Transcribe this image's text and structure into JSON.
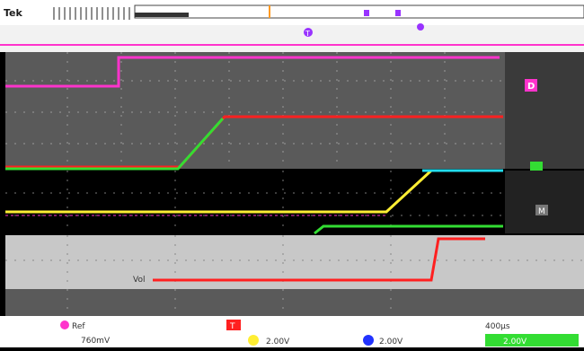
{
  "top_bar": {
    "title": "Tek",
    "trigger_label": "T"
  },
  "markers": {
    "trigger_marker_1": "T",
    "trigger_marker_2": "T"
  },
  "channel_labels": {
    "d_label": "D",
    "ch2": "M",
    "ch3": "M",
    "ch_ref": "Vol"
  },
  "readouts": {
    "ch1_label": "Ref",
    "ch1_volts": "760mV",
    "ch3_volts": "2.00V",
    "ch4_volts": "2.00V",
    "timebase": "400µs",
    "trigger_level": "2.00V"
  },
  "colors": {
    "magenta": "#ff33cc",
    "red": "#ff2020",
    "green": "#33dd33",
    "yellow": "#ffee33",
    "cyan": "#22ddee",
    "orange": "#ff9a22",
    "violet": "#9933ff",
    "blue": "#2233ff",
    "gray": "#5a5a5a",
    "light_gray": "#c8c8c8"
  }
}
